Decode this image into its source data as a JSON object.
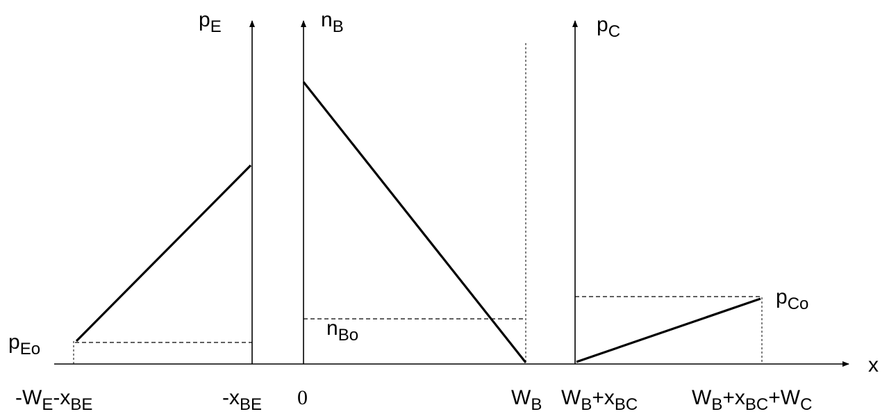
{
  "axes": {
    "x": "x",
    "emitter": {
      "main": "p",
      "sub": "E"
    },
    "base": {
      "main": "n",
      "sub": "B"
    },
    "collector": {
      "main": "p",
      "sub": "C"
    }
  },
  "levels": {
    "emitter_eq": {
      "main": "p",
      "sub": "Eo"
    },
    "base_eq": {
      "main": "n",
      "sub": "Bo"
    },
    "collector_eq": {
      "main": "p",
      "sub": "Co"
    }
  },
  "ticks": {
    "t1": {
      "a": "-W",
      "a_sub": "E",
      "b": "-x",
      "b_sub": "BE"
    },
    "t2": {
      "a": "-x",
      "a_sub": "BE"
    },
    "t3": {
      "a": "0"
    },
    "t4": {
      "a": "W",
      "a_sub": "B"
    },
    "t5": {
      "a": "W",
      "a_sub": "B",
      "b": "+x",
      "b_sub": "BC"
    },
    "t6": {
      "a": "W",
      "a_sub": "B",
      "b": "+x",
      "b_sub": "BC",
      "c": "+W",
      "c_sub": "C"
    }
  }
}
